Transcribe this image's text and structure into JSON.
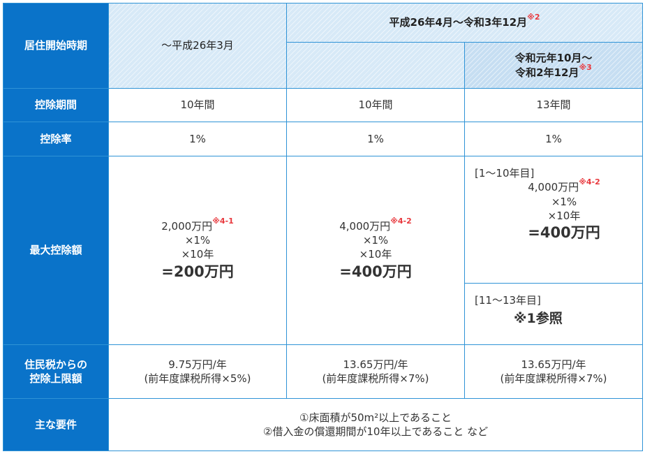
{
  "header": {
    "row_label": "居住開始時期",
    "col1": "〜平成26年3月",
    "col23": "平成26年4月〜令和3年12月",
    "col23_note": "※2",
    "col3_line1": "令和元年10月〜",
    "col3_line2": "令和2年12月",
    "col3_note": "※3"
  },
  "rows": {
    "period": {
      "label": "控除期間",
      "c1": "10年間",
      "c2": "10年間",
      "c3": "13年間"
    },
    "rate": {
      "label": "控除率",
      "c1": "1%",
      "c2": "1%",
      "c3": "1%"
    },
    "max": {
      "label": "最大控除額",
      "c1": {
        "line1": "2,000万円",
        "note": "※4-1",
        "line2": "×1%",
        "line3": "×10年",
        "total": "=200万円"
      },
      "c2": {
        "line1": "4,000万円",
        "note": "※4-2",
        "line2": "×1%",
        "line3": "×10年",
        "total": "=400万円"
      },
      "c3a": {
        "range": "[1〜10年目]",
        "line1": "4,000万円",
        "note": "※4-2",
        "line2": "×1%",
        "line3": "×10年",
        "total": "=400万円"
      },
      "c3b": {
        "range": "[11〜13年目]",
        "ref": "※1参照"
      }
    },
    "resident": {
      "label1": "住民税からの",
      "label2": "控除上限額",
      "c1a": "9.75万円/年",
      "c1b": "(前年度課税所得×5%)",
      "c2a": "13.65万円/年",
      "c2b": "(前年度課税所得×7%)",
      "c3a": "13.65万円/年",
      "c3b": "(前年度課税所得×7%)"
    },
    "req": {
      "label": "主な要件",
      "line1": "①床面積が50m²以上であること",
      "line2": "②借入金の償還期間が10年以上であること など"
    }
  },
  "colors": {
    "header_blue": "#0a73c9",
    "border": "#2f93d6",
    "note_red": "#e8383d",
    "hatch_light": "#d7e9f7"
  }
}
